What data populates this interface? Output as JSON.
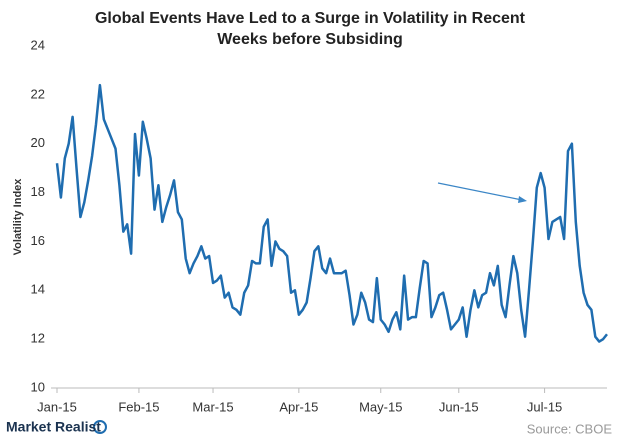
{
  "chart_data": {
    "type": "line",
    "title": "Global Events Have Led to a Surge in Volatility in Recent Weeks before Subsiding",
    "y_label": "Volatility Index",
    "categories": [
      "Jan-15",
      null,
      null,
      null,
      null,
      null,
      null,
      null,
      null,
      null,
      null,
      null,
      null,
      null,
      null,
      null,
      null,
      null,
      null,
      null,
      null,
      "Feb-15",
      null,
      null,
      null,
      null,
      null,
      null,
      null,
      null,
      null,
      null,
      null,
      null,
      null,
      null,
      null,
      null,
      null,
      null,
      "Mar-15",
      null,
      null,
      null,
      null,
      null,
      null,
      null,
      null,
      null,
      null,
      null,
      null,
      null,
      null,
      null,
      null,
      null,
      null,
      null,
      null,
      null,
      "Apr-15",
      null,
      null,
      null,
      null,
      null,
      null,
      null,
      null,
      null,
      null,
      null,
      null,
      null,
      null,
      null,
      null,
      null,
      null,
      null,
      null,
      "May-15",
      null,
      null,
      null,
      null,
      null,
      null,
      null,
      null,
      null,
      null,
      null,
      null,
      null,
      null,
      null,
      null,
      null,
      null,
      null,
      "Jun-15",
      null,
      null,
      null,
      null,
      null,
      null,
      null,
      null,
      null,
      null,
      null,
      null,
      null,
      null,
      null,
      null,
      null,
      null,
      null,
      null,
      null,
      "Jul-15",
      null,
      null,
      null,
      null,
      null,
      null,
      null,
      null,
      null,
      null,
      null,
      null,
      null,
      null,
      null,
      null
    ],
    "values": [
      19.2,
      17.8,
      19.4,
      20.0,
      21.1,
      19.0,
      17.0,
      17.6,
      18.5,
      19.5,
      20.8,
      22.4,
      21.0,
      20.6,
      20.2,
      19.8,
      18.3,
      16.4,
      16.7,
      15.5,
      20.4,
      18.7,
      20.9,
      20.2,
      19.4,
      17.3,
      18.3,
      16.8,
      17.4,
      17.9,
      18.5,
      17.2,
      16.9,
      15.3,
      14.7,
      15.1,
      15.4,
      15.8,
      15.3,
      15.4,
      14.3,
      14.4,
      14.6,
      13.7,
      13.9,
      13.3,
      13.2,
      13.0,
      13.9,
      14.2,
      15.2,
      15.1,
      15.1,
      16.6,
      16.9,
      15.0,
      16.0,
      15.7,
      15.6,
      15.4,
      13.9,
      14.0,
      13.0,
      13.2,
      13.5,
      14.5,
      15.6,
      15.8,
      14.9,
      14.7,
      15.3,
      14.7,
      14.7,
      14.7,
      14.8,
      13.8,
      12.6,
      13.0,
      13.9,
      13.5,
      12.8,
      12.7,
      14.5,
      12.8,
      12.6,
      12.3,
      12.8,
      13.1,
      12.4,
      14.6,
      12.8,
      12.9,
      12.9,
      14.1,
      15.2,
      15.1,
      12.9,
      13.3,
      13.8,
      13.9,
      13.2,
      12.4,
      12.6,
      12.8,
      13.3,
      12.1,
      13.2,
      14.0,
      13.3,
      13.8,
      13.9,
      14.7,
      14.2,
      15.0,
      13.4,
      12.9,
      14.2,
      15.4,
      14.7,
      13.2,
      12.1,
      14.0,
      16.0,
      18.2,
      18.8,
      18.2,
      16.1,
      16.8,
      16.9,
      17.0,
      16.1,
      19.7,
      20.0,
      16.8,
      15.0,
      13.9,
      13.4,
      13.2,
      12.1,
      11.9,
      12.0,
      12.2
    ],
    "color": "#1f6db0",
    "ylim": [
      10,
      24
    ],
    "yticks": [
      10,
      12,
      14,
      16,
      18,
      20,
      22,
      24
    ],
    "grid": false
  },
  "footer": {
    "brand": "Market Realist",
    "source": "Source: CBOE"
  }
}
